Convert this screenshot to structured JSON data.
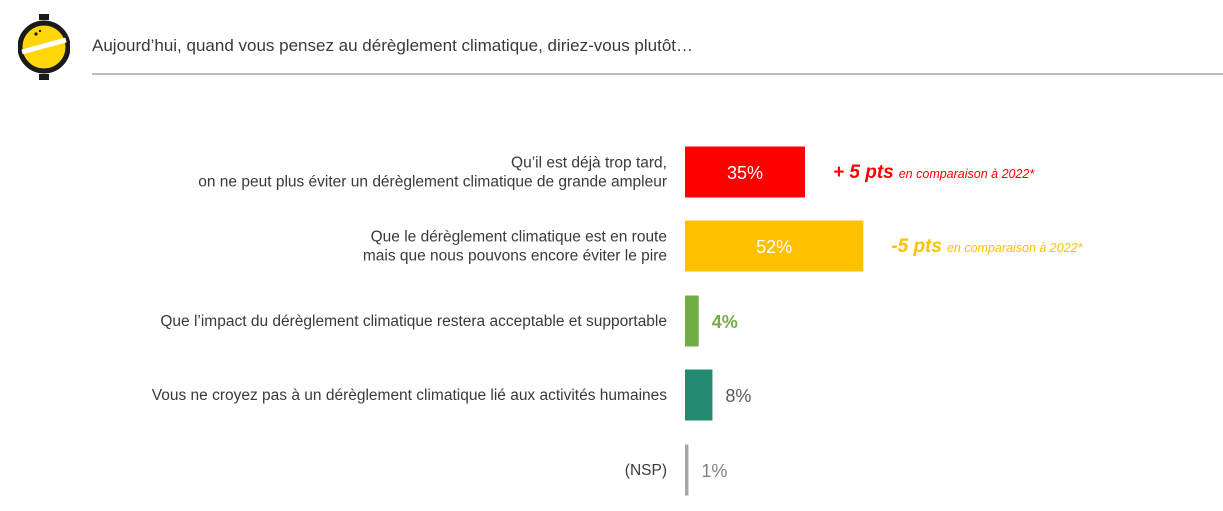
{
  "header": {
    "question": "Aujourd’hui, quand vous pensez au dérèglement climatique, diriez-vous plutôt…"
  },
  "logo": {
    "icon": "yellow-circle-logo-icon"
  },
  "chart_data": {
    "type": "bar",
    "orientation": "horizontal",
    "categories": [
      [
        "Qu’il est déjà trop tard,",
        "on ne peut plus éviter un dérèglement climatique de grande ampleur"
      ],
      [
        "Que le dérèglement  climatique est en route",
        "mais que nous pouvons encore éviter le pire"
      ],
      [
        "Que l’impact du dérèglement climatique restera acceptable et supportable"
      ],
      [
        "Vous ne croyez pas à un dérèglement climatique lié aux activités humaines"
      ],
      [
        "(NSP)"
      ]
    ],
    "values": [
      35,
      52,
      4,
      8,
      1
    ],
    "value_labels": [
      "35%",
      "52%",
      "4%",
      "8%",
      "1%"
    ],
    "colors": [
      "#ff0000",
      "#ffc000",
      "#70ad47",
      "#238a72",
      "#a6a6a6"
    ],
    "value_label_colors": [
      "#ffffff",
      "#ffffff",
      "#70ad47",
      "#595959",
      "#808080"
    ],
    "annotations": [
      {
        "index": 0,
        "big": "+ 5 pts",
        "small": "en comparaison à 2022*",
        "color": "#ff0000"
      },
      {
        "index": 1,
        "big": "-5 pts",
        "small": "en comparaison à 2022*",
        "color": "#ffc000"
      }
    ],
    "xlim": [
      0,
      100
    ],
    "grid": false,
    "legend": "none"
  }
}
